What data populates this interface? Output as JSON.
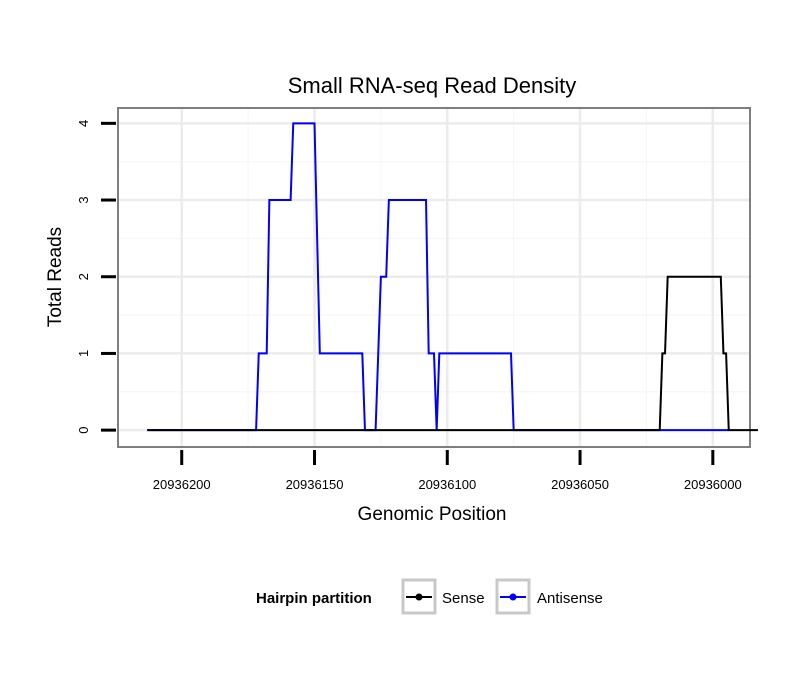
{
  "chart_data": {
    "type": "line",
    "title": "Small RNA-seq Read Density",
    "xlabel": "Genomic Position",
    "ylabel": "Total Reads",
    "x_reversed": true,
    "xlim": [
      20936224,
      20935986
    ],
    "ylim": [
      -0.22,
      4.2
    ],
    "x_ticks": [
      20936200,
      20936150,
      20936100,
      20936050,
      20936000
    ],
    "x_tick_labels": [
      "20936200",
      "20936150",
      "20936100",
      "20936050",
      "20936000"
    ],
    "y_ticks": [
      0,
      1,
      2,
      3,
      4
    ],
    "y_tick_labels": [
      "0",
      "1",
      "2",
      "3",
      "4"
    ],
    "grid": true,
    "legend": {
      "title": "Hairpin partition",
      "position": "bottom",
      "items": [
        {
          "label": "Sense",
          "color": "#000000"
        },
        {
          "label": "Antisense",
          "color": "#0000ff"
        }
      ]
    },
    "series": [
      {
        "name": "Sense",
        "color": "#000000",
        "points": [
          [
            20936213,
            0
          ],
          [
            20936020,
            0
          ],
          [
            20936019,
            1
          ],
          [
            20936018,
            1
          ],
          [
            20936017,
            2
          ],
          [
            20935997,
            2
          ],
          [
            20935996,
            1
          ],
          [
            20935995,
            1
          ],
          [
            20935994,
            0
          ],
          [
            20935983,
            0
          ]
        ]
      },
      {
        "name": "Antisense",
        "color": "#0000ff",
        "points": [
          [
            20936213,
            0
          ],
          [
            20936172,
            0
          ],
          [
            20936171,
            1
          ],
          [
            20936168,
            1
          ],
          [
            20936167,
            3
          ],
          [
            20936159,
            3
          ],
          [
            20936158,
            4
          ],
          [
            20936150,
            4
          ],
          [
            20936148,
            1
          ],
          [
            20936132,
            1
          ],
          [
            20936131,
            0
          ],
          [
            20936127,
            0
          ],
          [
            20936126,
            1
          ],
          [
            20936125,
            2
          ],
          [
            20936123,
            2
          ],
          [
            20936122,
            3
          ],
          [
            20936108,
            3
          ],
          [
            20936107,
            1
          ],
          [
            20936105,
            1
          ],
          [
            20936104,
            0
          ],
          [
            20936103,
            1
          ],
          [
            20936076,
            1
          ],
          [
            20936075,
            0
          ],
          [
            20935994,
            0
          ]
        ]
      }
    ]
  }
}
